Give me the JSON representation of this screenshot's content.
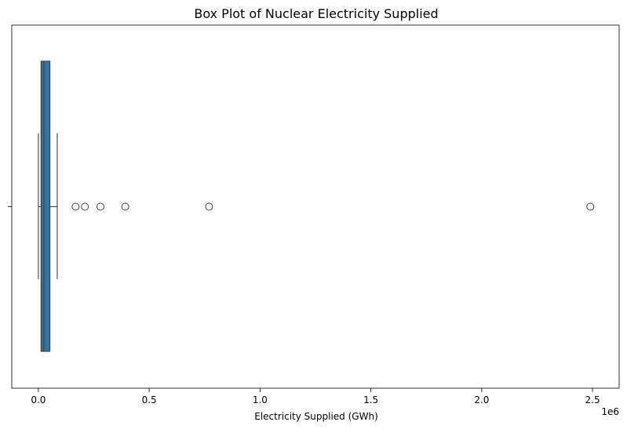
{
  "chart_data": {
    "type": "box",
    "title": "Box Plot of Nuclear Electricity Supplied",
    "xlabel": "Electricity Supplied (GWh)",
    "ylabel": "",
    "x_offset_label": "1e6",
    "xlim": [
      -0.12,
      2.62
    ],
    "xticks": [
      {
        "value": 0.0,
        "label": "0.0"
      },
      {
        "value": 0.5,
        "label": "0.5"
      },
      {
        "value": 1.0,
        "label": "1.0"
      },
      {
        "value": 1.5,
        "label": "1.5"
      },
      {
        "value": 2.0,
        "label": "2.0"
      },
      {
        "value": 2.5,
        "label": "2.5"
      }
    ],
    "box": {
      "whisker_low": 0.0,
      "q1": 0.012,
      "median": 0.025,
      "q3": 0.052,
      "whisker_high": 0.085,
      "color": "#3274a1"
    },
    "outliers": [
      0.168,
      0.21,
      0.28,
      0.392,
      0.77,
      2.49
    ],
    "grid": false,
    "legend": "none"
  }
}
